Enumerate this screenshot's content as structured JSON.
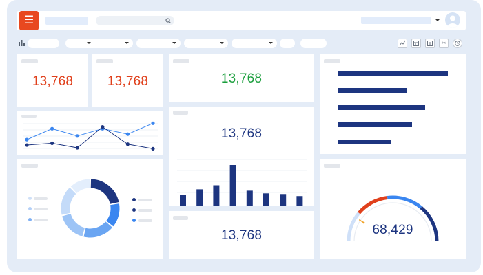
{
  "header": {
    "menu_icon": "hamburger-icon",
    "avatar_icon": "user-icon"
  },
  "toolbar": {
    "chart_icon": "bar-chart-icon",
    "tools": [
      "line-chart-icon",
      "table-icon",
      "list-icon",
      "scissors-icon",
      "clock-icon"
    ]
  },
  "kpis": {
    "kpi1": "13,768",
    "kpi2": "13,768",
    "kpi3": "13,768",
    "kpi4": "13,768",
    "kpi5": "13,768"
  },
  "gauge": {
    "value": "68,429",
    "fraction": 0.72
  },
  "colors": {
    "accent_red": "#e0401c",
    "accent_green": "#1a9e3c",
    "navy": "#1d3580",
    "blue": "#3a86f0",
    "light_blue": "#b4d0f8",
    "background": "#e4ecf7"
  },
  "chart_data": [
    {
      "type": "line",
      "x": [
        1,
        2,
        3,
        4,
        5,
        6
      ],
      "series": [
        {
          "values": [
            8,
            20,
            12,
            20,
            14,
            26
          ]
        },
        {
          "values": [
            2,
            4,
            -1,
            22,
            3,
            -2
          ]
        }
      ],
      "ylim": [
        -4,
        30
      ]
    },
    {
      "type": "bar",
      "categories": [
        "1",
        "2",
        "3",
        "4",
        "5",
        "6",
        "7",
        "8"
      ],
      "values": [
        16,
        24,
        30,
        60,
        22,
        18,
        17,
        14
      ],
      "ylim": [
        0,
        60
      ]
    },
    {
      "type": "bar",
      "orientation": "horizontal",
      "categories": [
        "1",
        "2",
        "3",
        "4",
        "5"
      ],
      "values": [
        160,
        101,
        127,
        108,
        78
      ],
      "ylim": [
        0,
        160
      ]
    },
    {
      "type": "pie",
      "donut": true,
      "values": [
        22,
        14,
        18,
        17,
        17,
        12
      ]
    }
  ]
}
